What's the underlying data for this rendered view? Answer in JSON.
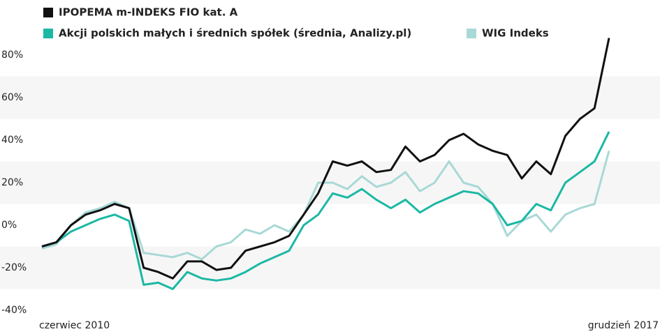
{
  "chart_data": {
    "type": "line",
    "categories": [
      "czerwiec 2010",
      null,
      null,
      null,
      null,
      null,
      null,
      null,
      null,
      null,
      null,
      null,
      null,
      null,
      null,
      null,
      null,
      null,
      null,
      null,
      null,
      null,
      null,
      null,
      null,
      null,
      null,
      null,
      null,
      null,
      null,
      null,
      null,
      null,
      null,
      null,
      null,
      null,
      null,
      "grudzień 2017"
    ],
    "series": [
      {
        "name": "IPOPEMA m-INDEKS FIO kat. A",
        "color": "#111111",
        "values": [
          -10,
          -8,
          0,
          5,
          7,
          10,
          8,
          -20,
          -22,
          -25,
          -17,
          -17,
          -21,
          -20,
          -12,
          -10,
          -8,
          -5,
          5,
          15,
          30,
          28,
          30,
          25,
          26,
          37,
          30,
          33,
          40,
          43,
          38,
          35,
          33,
          22,
          30,
          24,
          42,
          50,
          55,
          88
        ]
      },
      {
        "name": "Akcji polskich małych i średnich spółek (średnia, Analizy.pl)",
        "color": "#1bb8a4",
        "values": [
          -10,
          -8,
          -3,
          0,
          3,
          5,
          2,
          -28,
          -27,
          -30,
          -22,
          -25,
          -26,
          -25,
          -22,
          -18,
          -15,
          -12,
          0,
          5,
          15,
          13,
          17,
          12,
          8,
          12,
          6,
          10,
          13,
          16,
          15,
          10,
          0,
          2,
          10,
          7,
          20,
          25,
          30,
          44
        ]
      },
      {
        "name": "WIG Indeks",
        "color": "#a8d9d6",
        "values": [
          -11,
          -9,
          0,
          6,
          8,
          11,
          8,
          -13,
          -14,
          -15,
          -13,
          -16,
          -10,
          -8,
          -2,
          -4,
          0,
          -3,
          5,
          20,
          20,
          17,
          23,
          18,
          20,
          25,
          16,
          20,
          30,
          20,
          18,
          10,
          -5,
          2,
          5,
          -3,
          5,
          8,
          10,
          35
        ]
      }
    ],
    "ylim": [
      -40,
      90
    ],
    "yticks": [
      {
        "value": 80,
        "label": "80%"
      },
      {
        "value": 60,
        "label": "60%"
      },
      {
        "value": 40,
        "label": "40%"
      },
      {
        "value": 20,
        "label": "20%"
      },
      {
        "value": 0,
        "label": "0%"
      },
      {
        "value": -20,
        "label": "-20%"
      },
      {
        "value": -40,
        "label": "-40%"
      }
    ]
  }
}
